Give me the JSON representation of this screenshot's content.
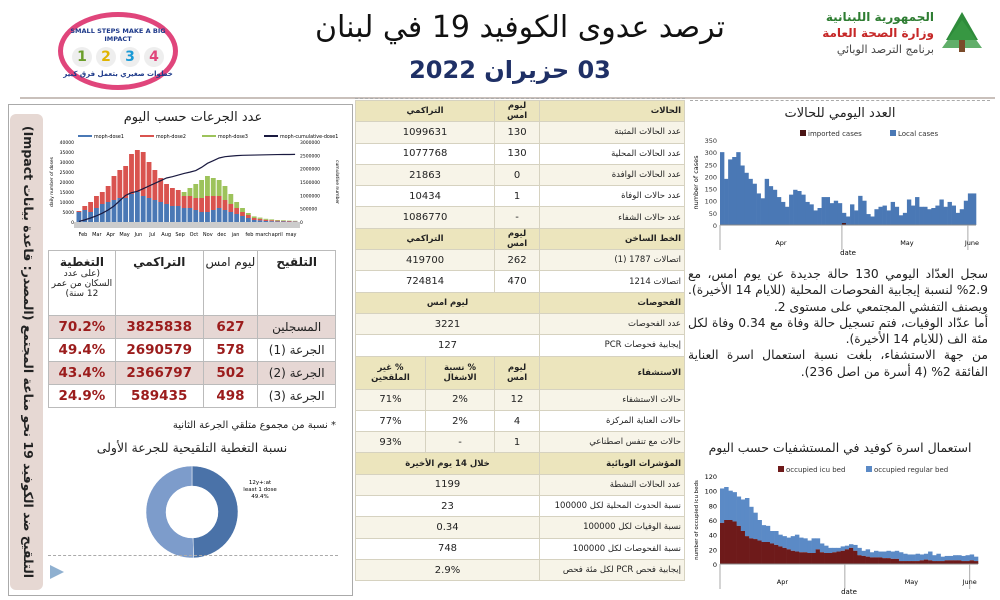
{
  "header": {
    "title": "ترصد عدوى الكوفيد 19 في لبنان",
    "date": "03 حزيران 2022",
    "logo_left": {
      "slogan_en": "SMALL STEPS MAKE A BIG IMPACT",
      "slogan_ar": "خطوات صغيري بتعمل فرق كبير",
      "steps": [
        "1",
        "2",
        "3",
        "4"
      ]
    },
    "logo_right": {
      "line1": "الجمهورية اللبنانية",
      "line2": "وزارة الصحة العامة",
      "line3": "برنامج الترصد الوبائي"
    }
  },
  "colors": {
    "navy": "#1f3066",
    "dark_red": "#9b1c1c",
    "blue": "#4a78b5",
    "maroon": "#6e1a1a",
    "header_beige": "#ece5bd"
  },
  "vaccination": {
    "side_title": "التلقيح ضد الكوفيد 19 نحو مناعة المجتمع (المصدر: قاعدة بيانات Impact)",
    "chart_title": "عدد الجرعات حسب اليوم",
    "table": {
      "headers": {
        "vaccination": "التلقيح",
        "yesterday": "ليوم امس",
        "cumulative": "التراكمي",
        "coverage": "التغطية",
        "coverage_note": "(على عدد السكان من عمر 12 سنة)"
      },
      "rows": [
        {
          "label": "المسجلين",
          "yesterday": "627",
          "cumulative": "3825838",
          "coverage": "70.2%"
        },
        {
          "label": "الجرعة (1)",
          "yesterday": "578",
          "cumulative": "2690579",
          "coverage": "49.4%"
        },
        {
          "label": "الجرعة (2)",
          "yesterday": "502",
          "cumulative": "2366797",
          "coverage": "43.4%"
        },
        {
          "label": "الجرعة (3)",
          "yesterday": "498",
          "cumulative": "589435",
          "coverage": "24.9%"
        }
      ],
      "footnote": "* نسبة من مجموع متلقي الجرعة الثانية"
    },
    "donut_title": "نسبة التغطية التلقيحية للجرعة الأولى"
  },
  "cases_table": {
    "sections": [
      {
        "header": [
          "الحالات",
          "ليوم امس",
          "التراكمي"
        ],
        "rows": [
          [
            "عدد الحالات المثبتة",
            "130",
            "1099631"
          ],
          [
            "عدد الحالات المحلية",
            "130",
            "1077768"
          ],
          [
            "عدد الحالات الوافدة",
            "0",
            "21863"
          ],
          [
            "عدد حالات الوفاة",
            "1",
            "10434"
          ],
          [
            "عدد حالات الشفاء",
            "-",
            "1086770"
          ]
        ]
      },
      {
        "header": [
          "الخط الساخن",
          "ليوم امس",
          "التراكمي"
        ],
        "rows": [
          [
            "اتصالات 1787 (1)",
            "262",
            "419700"
          ],
          [
            "اتصالات 1214",
            "470",
            "724814"
          ]
        ]
      },
      {
        "header": [
          "الفحوصات",
          "ليوم امس"
        ],
        "rows": [
          [
            "عدد الفحوصات",
            "3221"
          ],
          [
            "إيجابية فحوصات PCR",
            "127"
          ]
        ]
      },
      {
        "header": [
          "الاستشفاء",
          "ليوم امس",
          "% نسبة الاشغال",
          "% غير الملقحين"
        ],
        "rows": [
          [
            "حالات الاستشفاء",
            "12",
            "2%",
            "71%"
          ],
          [
            "حالات العناية المركزة",
            "4",
            "2%",
            "77%"
          ],
          [
            "حالات مع تنفس اصطناعي",
            "1",
            "-",
            "93%"
          ]
        ]
      },
      {
        "header": [
          "المؤشرات الوبائية",
          "خلال 14 يوم الأخيرة"
        ],
        "rows": [
          [
            "عدد الحالات النشطة",
            "1199"
          ],
          [
            "نسبة الحدوث المحلية لكل 100000",
            "23"
          ],
          [
            "نسبة الوفيات لكل 100000",
            "0.34"
          ],
          [
            "نسبة الفحوصات لكل 100000",
            "748"
          ],
          [
            "إيجابية فحص PCR لكل مئة فحص",
            "2.9%"
          ]
        ]
      }
    ]
  },
  "summary": {
    "p1": "سجل العدّاد اليومي 130 حالة جديدة عن يوم امس، مع 2.9% لنسبة إيجابية الفحوصات المحلية (للايام 14 الأخيرة). ويصنف التفشي المجتمعي على مستوى 2.",
    "p2": "أما عدّاد الوفيات، فتم تسجيل حالة وفاة مع 0.34 وفاة لكل مئة الف (للايام 14 الأخيرة).",
    "p3": "من جهة الاستشفاء، بلغت نسبة استعمال اسرة العناية الفائقة 2% (4 أسرة من اصل 236)."
  },
  "chart_data": [
    {
      "id": "daily-cases",
      "type": "bar",
      "title": "العدد اليومي للحالات",
      "xlabel": "date",
      "ylabel": "number of cases",
      "ylim": [
        0,
        350
      ],
      "yticks": [
        0,
        50,
        100,
        150,
        200,
        250,
        300,
        350
      ],
      "months": [
        "Apr",
        "May",
        "June"
      ],
      "series": [
        {
          "name": "imported cases",
          "color": "#4a1414",
          "values": [
            0,
            0,
            0,
            0,
            0,
            0,
            0,
            0,
            0,
            0,
            0,
            0,
            0,
            0,
            0,
            0,
            0,
            0,
            0,
            0,
            0,
            0,
            0,
            0,
            0,
            0,
            0,
            0,
            0,
            0,
            8,
            0,
            0,
            0,
            0,
            0,
            0,
            0,
            0,
            0,
            0,
            0,
            0,
            0,
            0,
            0,
            0,
            0,
            0,
            0,
            0,
            0,
            0,
            0,
            0,
            0,
            0,
            0,
            0,
            0,
            0,
            0,
            0
          ]
        },
        {
          "name": "Local cases",
          "color": "#4a78b5",
          "values": [
            300,
            190,
            270,
            280,
            300,
            245,
            215,
            190,
            170,
            130,
            110,
            190,
            160,
            145,
            115,
            95,
            75,
            125,
            145,
            140,
            125,
            95,
            85,
            60,
            70,
            115,
            115,
            90,
            100,
            90,
            50,
            35,
            85,
            60,
            120,
            100,
            45,
            35,
            65,
            75,
            80,
            60,
            95,
            75,
            40,
            50,
            105,
            80,
            115,
            75,
            75,
            65,
            70,
            80,
            105,
            75,
            95,
            80,
            50,
            65,
            100,
            130,
            130
          ]
        }
      ]
    },
    {
      "id": "hospital-beds",
      "type": "area",
      "title": "استعمال اسرة كوفيد في المستشفيات حسب اليوم",
      "xlabel": "date",
      "ylabel": "number of occupied icu beds",
      "ylim": [
        0,
        120
      ],
      "yticks": [
        0,
        20,
        40,
        60,
        80,
        100,
        120
      ],
      "months": [
        "Apr",
        "May",
        "June"
      ],
      "series": [
        {
          "name": "occupied icu bed",
          "color": "#6e1a1a",
          "values": [
            56,
            60,
            60,
            58,
            52,
            45,
            38,
            35,
            34,
            32,
            30,
            30,
            28,
            26,
            24,
            22,
            20,
            18,
            17,
            16,
            16,
            15,
            15,
            20,
            16,
            15,
            15,
            16,
            17,
            18,
            20,
            22,
            18,
            12,
            11,
            10,
            9,
            9,
            9,
            8,
            8,
            7,
            7,
            4,
            4,
            4,
            4,
            4,
            5,
            6,
            5,
            4,
            4,
            4,
            5,
            5,
            5,
            5,
            4,
            4,
            5,
            4
          ]
        },
        {
          "name": "occupied regular bed",
          "color": "#5b8ac6",
          "values": [
            47,
            45,
            40,
            40,
            40,
            43,
            52,
            43,
            36,
            28,
            23,
            22,
            17,
            19,
            16,
            16,
            16,
            20,
            23,
            20,
            19,
            17,
            20,
            15,
            12,
            10,
            7,
            6,
            5,
            6,
            5,
            5,
            8,
            10,
            7,
            10,
            7,
            9,
            8,
            9,
            10,
            10,
            11,
            12,
            10,
            9,
            9,
            10,
            8,
            8,
            12,
            8,
            10,
            6,
            6,
            6,
            7,
            7,
            7,
            8,
            8,
            6
          ]
        }
      ]
    },
    {
      "id": "doses-per-day",
      "type": "bar",
      "title": "عدد الجرعات حسب اليوم",
      "ylabel": "daily number of doses",
      "y2label": "cumulative number",
      "ylim": [
        0,
        40000
      ],
      "y2lim": [
        0,
        3000000
      ],
      "yticks": [
        0,
        5000,
        10000,
        15000,
        20000,
        25000,
        30000,
        35000,
        40000
      ],
      "y2ticks": [
        0,
        500000,
        1000000,
        1500000,
        2000000,
        2500000,
        3000000
      ],
      "months": [
        "Feb",
        "Mar",
        "Apr",
        "May",
        "Jun",
        "Jul",
        "Aug",
        "Sep",
        "Oct",
        "Nov",
        "dec",
        "jan",
        "feb",
        "march",
        "april",
        "may"
      ],
      "series": [
        {
          "name": "moph-dose1",
          "color": "#4a78b5",
          "values": [
            5000,
            6000,
            5000,
            7000,
            9000,
            10000,
            11000,
            12000,
            12000,
            14000,
            15000,
            13000,
            12000,
            11000,
            10000,
            9000,
            8000,
            8000,
            7000,
            7000,
            6000,
            5000,
            5000,
            6000,
            7000,
            6000,
            5000,
            4000,
            3000,
            2000,
            1000,
            800,
            500,
            400,
            300,
            300,
            200,
            200
          ]
        },
        {
          "name": "moph-dose2",
          "color": "#d9534f",
          "values": [
            500,
            2000,
            5000,
            6000,
            6000,
            8000,
            12000,
            14000,
            16000,
            20000,
            21000,
            22000,
            18000,
            15000,
            12000,
            10000,
            9000,
            8000,
            6000,
            6000,
            6000,
            7000,
            8000,
            7000,
            6000,
            5000,
            4000,
            3000,
            2000,
            1500,
            1000,
            800,
            600,
            500,
            400,
            300,
            300,
            200
          ]
        },
        {
          "name": "moph-dose3",
          "color": "#9dc35b",
          "values": [
            0,
            0,
            0,
            0,
            0,
            0,
            0,
            0,
            0,
            0,
            0,
            0,
            0,
            0,
            0,
            0,
            0,
            0,
            2000,
            4000,
            7000,
            9000,
            10000,
            9000,
            8000,
            7000,
            5000,
            3000,
            2000,
            1000,
            800,
            600,
            500,
            400,
            300,
            300,
            200,
            200
          ]
        },
        {
          "name": "moph-cumulative-dose1",
          "color": "#1a1a40",
          "values": [
            20000,
            80000,
            150000,
            230000,
            330000,
            450000,
            600000,
            800000,
            1000000,
            1100000,
            1150000,
            1250000,
            1350000,
            1450000,
            1550000,
            1650000,
            1700000,
            1760000,
            1820000,
            1870000,
            1930000,
            2050000,
            2200000,
            2300000,
            2400000,
            2450000,
            2470000,
            2490000,
            2500000,
            2505000,
            2510000,
            2515000,
            2520000,
            2525000,
            2528000,
            2530000,
            2532000,
            2535000
          ]
        }
      ]
    },
    {
      "id": "dose1-coverage",
      "type": "pie",
      "title": "نسبة التغطية التلقيحية للجرعة الأولى",
      "labels": [
        "12y+:at least 1 dose 49.4%",
        "other"
      ],
      "values": [
        49.4,
        50.6
      ],
      "colors": [
        "#4a72a8",
        "#7d9ccb"
      ]
    }
  ]
}
